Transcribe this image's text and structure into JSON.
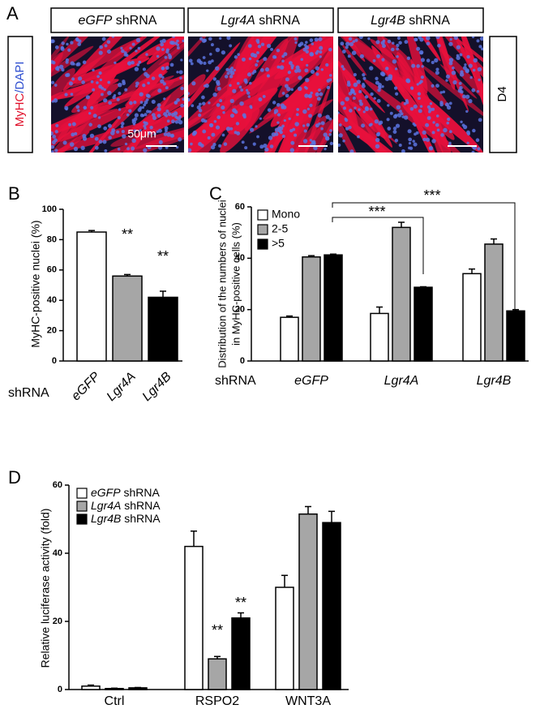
{
  "panel_a": {
    "label": "A",
    "headers": [
      "eGFP shRNA",
      "Lgr4A shRNA",
      "Lgr4B shRNA"
    ],
    "stain": "MyHC/DAPI",
    "day": "D4",
    "scale": "50μm"
  },
  "chart_data": [
    {
      "type": "bar",
      "panel_label": "B",
      "ylabel": "MyHC-positive nuclei  (%)",
      "x_label": "shRNA",
      "categories": [
        "eGFP",
        "Lgr4A",
        "Lgr4B"
      ],
      "values": [
        85,
        56,
        42
      ],
      "errors": [
        1,
        1,
        4
      ],
      "colors": [
        "#ffffff",
        "#a6a6a6",
        "#000000"
      ],
      "ylim": [
        0,
        100
      ],
      "yticks": [
        0,
        20,
        40,
        60,
        80,
        100
      ],
      "annotations": [
        "**",
        "**"
      ]
    },
    {
      "type": "bar",
      "panel_label": "C",
      "ylabel": [
        "Distribution of the numbers of nuclei",
        "in MyHC-positive cells (%)"
      ],
      "x_label": "shRNA",
      "categories": [
        "eGFP",
        "Lgr4A",
        "Lgr4B"
      ],
      "series": [
        {
          "name": "Mono",
          "color": "#ffffff",
          "values": [
            17,
            18.5,
            34
          ],
          "errors": [
            0.5,
            2.5,
            1.8
          ]
        },
        {
          "name": "2-5",
          "color": "#a6a6a6",
          "values": [
            40.5,
            52,
            45.5
          ],
          "errors": [
            0.5,
            2,
            2
          ]
        },
        {
          "name": ">5",
          "color": "#000000",
          "values": [
            41.3,
            28.7,
            19.5
          ],
          "errors": [
            0.3,
            0.2,
            0.5
          ]
        }
      ],
      "ylim": [
        0,
        60
      ],
      "yticks": [
        0,
        20,
        40,
        60
      ],
      "annotations": [
        "***",
        "***"
      ]
    },
    {
      "type": "bar",
      "panel_label": "D",
      "ylabel": "Relative luciferase activity (fold)",
      "categories": [
        "Ctrl",
        "RSPO2",
        "WNT3A"
      ],
      "series": [
        {
          "name": "eGFP shRNA",
          "color": "#ffffff",
          "values": [
            1,
            42,
            30
          ],
          "errors": [
            0.3,
            4.5,
            3.5
          ]
        },
        {
          "name": "Lgr4A shRNA",
          "color": "#a6a6a6",
          "values": [
            0.3,
            9,
            51.5
          ],
          "errors": [
            0.1,
            0.7,
            2.2
          ]
        },
        {
          "name": "Lgr4B shRNA",
          "color": "#000000",
          "values": [
            0.5,
            21,
            49
          ],
          "errors": [
            0.1,
            1.5,
            3.3
          ]
        }
      ],
      "ylim": [
        0,
        60
      ],
      "yticks": [
        0,
        20,
        40,
        60
      ],
      "annotations": [
        "**",
        "**"
      ]
    }
  ]
}
